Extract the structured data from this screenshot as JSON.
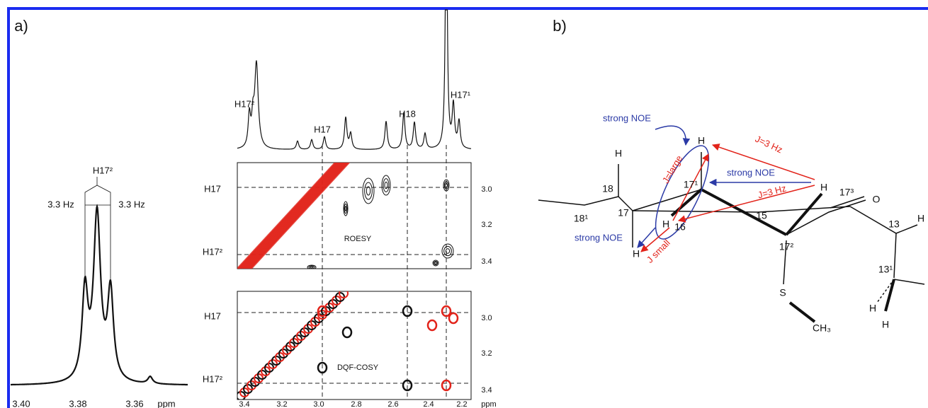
{
  "panel_a": {
    "label": "a)",
    "multiplet": {
      "peak": "H17²",
      "coupling_left": "3.3 Hz",
      "coupling_right": "3.3 Hz",
      "x_ticks": [
        "3.40",
        "3.38",
        "3.36"
      ],
      "x_unit": "ppm"
    },
    "spectrum_1d": {
      "peaks": [
        "H17²",
        "H17",
        "H18",
        "H17¹"
      ]
    },
    "roesy": {
      "title": "ROESY",
      "row_labels": [
        "H17",
        "H17²"
      ],
      "y_ticks": [
        "3.0",
        "3.2",
        "3.4"
      ]
    },
    "dqf_cosy": {
      "title": "DQF-COSY",
      "row_labels": [
        "H17",
        "H17²"
      ],
      "y_ticks": [
        "3.0",
        "3.2",
        "3.4"
      ]
    },
    "x_ticks": [
      "3.4",
      "3.2",
      "3.0",
      "2.8",
      "2.6",
      "2.4",
      "2.2"
    ],
    "x_unit": "ppm"
  },
  "panel_b": {
    "label": "b)",
    "atoms": [
      "H",
      "18",
      "18¹",
      "17",
      "17¹",
      "H",
      "H",
      "16",
      "15",
      "H",
      "17³",
      "O",
      "17²",
      "S",
      "CH₃",
      "13",
      "H",
      "13¹",
      "H",
      "H",
      "H"
    ],
    "annotations": [
      "strong NOE",
      "strong NOE",
      "strong NOE",
      "J=3 Hz",
      "J=3 Hz",
      "J=large",
      "J small"
    ]
  }
}
